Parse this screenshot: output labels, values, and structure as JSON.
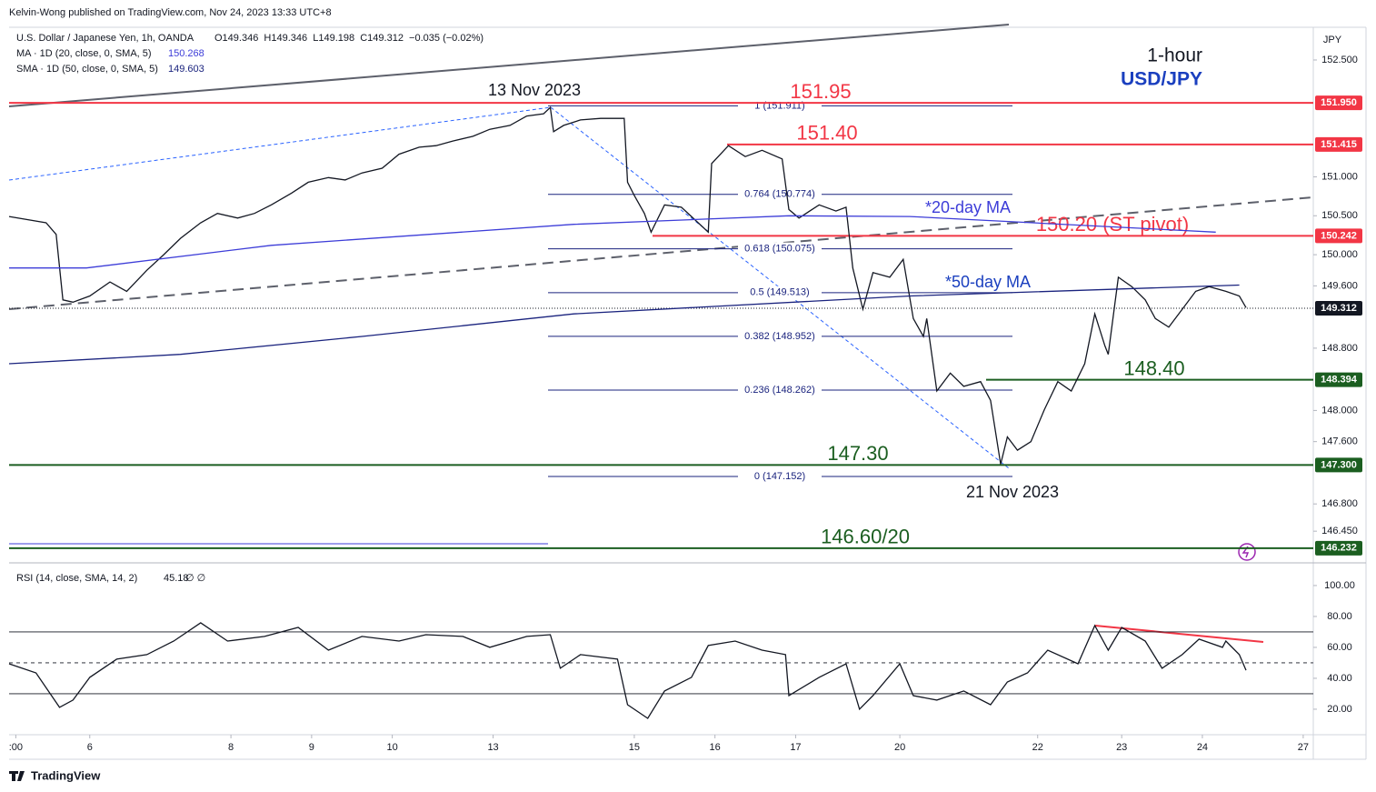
{
  "header": {
    "publisher": "Kelvin-Wong published on TradingView.com, Nov 24, 2023 13:33 UTC+8",
    "brand": "TradingView"
  },
  "legend": {
    "symbol": "U.S. Dollar / Japanese Yen, 1h, OANDA",
    "ohlc": "O149.346  H149.346  L149.198  C149.312  −0.035 (−0.02%)",
    "ma20": {
      "label": "MA · 1D (20, close, 0, SMA, 5)",
      "value": "150.268"
    },
    "sma50": {
      "label": "SMA · 1D (50, close, 0, SMA, 5)",
      "value": "149.603"
    },
    "rsi": {
      "label": "RSI (14, close, SMA, 14, 2)",
      "value": "45.18",
      "extra": "∅ ∅"
    }
  },
  "chart_data": [
    {
      "type": "line",
      "title": "1-hour",
      "subtitle": "USD/JPY",
      "axis_label": "JPY",
      "annotations": [
        "13 Nov 2023",
        "21 Nov 2023"
      ],
      "xlim": [
        0,
        388
      ],
      "ylim": [
        146.09,
        152.92
      ],
      "yticks": [
        {
          "value": 152.5,
          "label": "152.500"
        },
        {
          "value": 151.0,
          "label": "151.000"
        },
        {
          "value": 150.5,
          "label": "150.500"
        },
        {
          "value": 150.0,
          "label": "150.000"
        },
        {
          "value": 149.6,
          "label": "149.600"
        },
        {
          "value": 148.8,
          "label": "148.800"
        },
        {
          "value": 148.0,
          "label": "148.000"
        },
        {
          "value": 147.6,
          "label": "147.600"
        },
        {
          "value": 146.8,
          "label": "146.800"
        },
        {
          "value": 146.45,
          "label": "146.450"
        }
      ],
      "series": [
        {
          "color": "#131722",
          "x": [
            0,
            11,
            14,
            16,
            19,
            24,
            30,
            35,
            41,
            46,
            51,
            57,
            62,
            68,
            73,
            78,
            84,
            89,
            95,
            100,
            105,
            111,
            116,
            122,
            127,
            132,
            138,
            143,
            149,
            154,
            159,
            161,
            162,
            165,
            170,
            176,
            183,
            184,
            186,
            189,
            191,
            195,
            200,
            205,
            208,
            209,
            214,
            219,
            224,
            230,
            232,
            235,
            241,
            246,
            249,
            251,
            254,
            257,
            262,
            266,
            269,
            272,
            273,
            276,
            280,
            284,
            289,
            292,
            295,
            297,
            300,
            304,
            308,
            312,
            316,
            320,
            323,
            326,
            327,
            330,
            334,
            338,
            341,
            345,
            349,
            353,
            357,
            362,
            366,
            368
          ],
          "values": [
            150.49,
            150.41,
            150.26,
            149.42,
            149.39,
            149.47,
            149.65,
            149.53,
            149.8,
            150.0,
            150.21,
            150.41,
            150.53,
            150.47,
            150.53,
            150.64,
            150.79,
            150.93,
            150.99,
            150.96,
            151.05,
            151.11,
            151.29,
            151.38,
            151.4,
            151.46,
            151.52,
            151.61,
            151.66,
            151.78,
            151.81,
            151.89,
            151.58,
            151.66,
            151.73,
            151.75,
            151.75,
            150.93,
            150.76,
            150.53,
            150.29,
            150.64,
            150.61,
            150.41,
            150.29,
            151.17,
            151.4,
            151.26,
            151.34,
            151.23,
            150.58,
            150.47,
            150.64,
            150.56,
            150.61,
            149.83,
            149.3,
            149.77,
            149.71,
            149.94,
            149.18,
            148.95,
            149.18,
            148.25,
            148.48,
            148.31,
            148.37,
            148.13,
            147.31,
            147.66,
            147.49,
            147.6,
            148.01,
            148.37,
            148.25,
            148.6,
            149.24,
            148.83,
            148.72,
            149.71,
            149.59,
            149.42,
            149.18,
            149.07,
            149.3,
            149.53,
            149.59,
            149.53,
            149.47,
            149.32
          ]
        },
        {
          "name": "*20-day MA",
          "color": "#3d3dd8",
          "x": [
            0,
            23,
            78,
            168,
            232,
            268,
            359
          ],
          "values": [
            149.83,
            149.83,
            150.12,
            150.39,
            150.5,
            150.49,
            150.29
          ]
        },
        {
          "name": "*50-day MA",
          "color": "#1a237e",
          "x": [
            0,
            51,
            105,
            168,
            268,
            366
          ],
          "values": [
            148.6,
            148.72,
            148.95,
            149.24,
            149.47,
            149.61
          ]
        }
      ],
      "levels": [
        {
          "value": 151.95,
          "label": "151.950",
          "annotation": "151.95",
          "color": "#f23645"
        },
        {
          "value": 151.415,
          "label": "151.415",
          "annotation": "151.40",
          "color": "#f23645"
        },
        {
          "value": 150.242,
          "label": "150.242",
          "annotation": "150.20 (ST pivot)",
          "color": "#f23645"
        },
        {
          "value": 149.312,
          "label": "149.312",
          "color": "#131722"
        },
        {
          "value": 148.394,
          "label": "148.394",
          "annotation": "148.40",
          "color": "#1b5e20"
        },
        {
          "value": 147.3,
          "label": "147.300",
          "annotation": "147.30",
          "color": "#1b5e20"
        },
        {
          "value": 146.232,
          "label": "146.232",
          "annotation": "146.60/20",
          "color": "#1b5e20"
        }
      ],
      "fib_levels": [
        {
          "value": 151.911,
          "label": "1 (151.911)"
        },
        {
          "value": 150.774,
          "label": "0.764 (150.774)"
        },
        {
          "value": 150.075,
          "label": "0.618 (150.075)"
        },
        {
          "value": 149.513,
          "label": "0.5 (149.513)"
        },
        {
          "value": 148.952,
          "label": "0.382 (148.952)"
        },
        {
          "value": 148.262,
          "label": "0.236 (148.262)"
        },
        {
          "value": 147.152,
          "label": "0 (147.152)"
        }
      ]
    },
    {
      "type": "line",
      "xlim": [
        0,
        388
      ],
      "ylim": [
        3.5,
        112.9
      ],
      "yticks": [
        {
          "value": 100,
          "label": "100.00"
        },
        {
          "value": 80,
          "label": "80.00"
        },
        {
          "value": 60,
          "label": "60.00"
        },
        {
          "value": 40,
          "label": "40.00"
        },
        {
          "value": 20,
          "label": "20.00"
        }
      ],
      "bands": [
        70,
        50,
        30
      ],
      "xticks": [
        {
          "value": 2,
          "label": ":00"
        },
        {
          "value": 24,
          "label": "6"
        },
        {
          "value": 66,
          "label": "8"
        },
        {
          "value": 90,
          "label": "9"
        },
        {
          "value": 114,
          "label": "10"
        },
        {
          "value": 144,
          "label": "13"
        },
        {
          "value": 186,
          "label": "15"
        },
        {
          "value": 210,
          "label": "16"
        },
        {
          "value": 234,
          "label": "17"
        },
        {
          "value": 265,
          "label": "20"
        },
        {
          "value": 306,
          "label": "22"
        },
        {
          "value": 331,
          "label": "23"
        },
        {
          "value": 355,
          "label": "24"
        },
        {
          "value": 385,
          "label": "27"
        }
      ],
      "series": [
        {
          "name": "RSI (14, close, SMA, 14, 2)",
          "color": "#131722",
          "x": [
            0,
            8,
            15,
            19,
            24,
            32,
            41,
            49,
            57,
            65,
            76,
            86,
            95,
            105,
            116,
            124,
            135,
            143,
            154,
            161,
            164,
            170,
            181,
            184,
            190,
            195,
            203,
            208,
            216,
            224,
            231,
            232,
            241,
            249,
            253,
            257,
            265,
            269,
            276,
            284,
            292,
            297,
            303,
            309,
            318,
            323,
            327,
            331,
            338,
            343,
            349,
            354,
            361,
            362,
            366,
            368
          ],
          "values": [
            49.4,
            43.5,
            21.2,
            25.9,
            40.6,
            52.4,
            55.3,
            64.1,
            75.9,
            64.1,
            67.1,
            72.9,
            58.2,
            67.1,
            64.1,
            68.2,
            67.1,
            60,
            67.1,
            68.2,
            46.5,
            55.3,
            52.4,
            22.9,
            14.1,
            31.8,
            40.6,
            61.2,
            64.1,
            58.2,
            55.3,
            28.8,
            40.6,
            49.4,
            20,
            28.8,
            49.4,
            28.8,
            25.9,
            31.8,
            22.9,
            37.6,
            43.5,
            58.2,
            49.4,
            74.1,
            58.2,
            72.9,
            64.1,
            46.5,
            55.3,
            65.3,
            60,
            64.1,
            55.3,
            45.18
          ]
        }
      ]
    }
  ]
}
